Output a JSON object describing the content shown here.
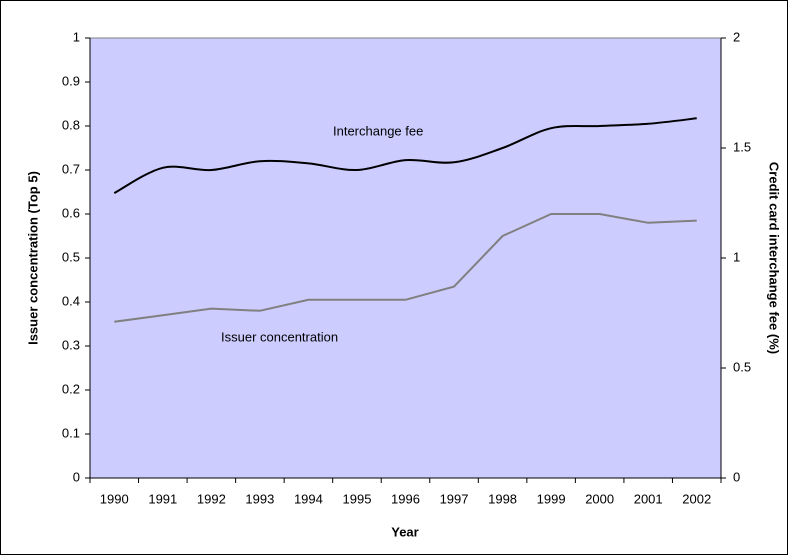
{
  "chart_data": {
    "type": "line",
    "xlabel": "Year",
    "ylabel": "Issuer concentration (Top 5)",
    "y2label": "Credit card interchange fee (%)",
    "categories": [
      "1990",
      "1991",
      "1992",
      "1993",
      "1994",
      "1995",
      "1996",
      "1997",
      "1998",
      "1999",
      "2000",
      "2001",
      "2002"
    ],
    "series": [
      {
        "name": "Interchange fee",
        "color": "#000000",
        "axis": "y2",
        "smooth": true,
        "values": [
          1.295,
          1.41,
          1.4,
          1.44,
          1.43,
          1.4,
          1.445,
          1.435,
          1.5,
          1.59,
          1.6,
          1.61,
          1.635
        ]
      },
      {
        "name": "Issuer concentration",
        "color": "#808080",
        "axis": "y",
        "smooth": false,
        "values": [
          0.355,
          0.37,
          0.385,
          0.38,
          0.405,
          0.405,
          0.405,
          0.435,
          0.55,
          0.6,
          0.6,
          0.58,
          0.585
        ]
      }
    ],
    "ylim": [
      0,
      1
    ],
    "yticks": [
      0,
      0.1,
      0.2,
      0.3,
      0.4,
      0.5,
      0.6,
      0.7,
      0.8,
      0.9,
      1
    ],
    "y2lim": [
      0,
      2
    ],
    "y2ticks": [
      0,
      0.5,
      1,
      1.5,
      2
    ],
    "background": "#ccccff",
    "grid": false
  }
}
